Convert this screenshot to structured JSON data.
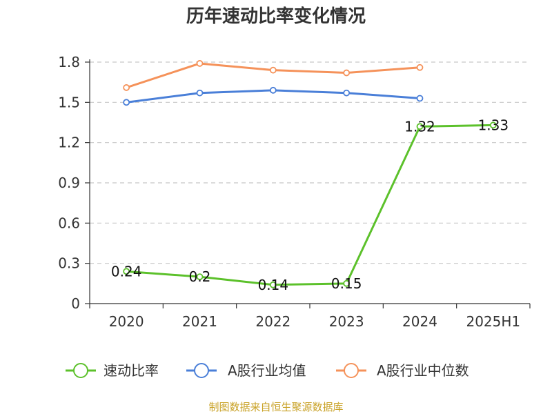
{
  "chart_data": {
    "type": "line",
    "title": "历年速动比率变化情况",
    "categories": [
      "2020",
      "2021",
      "2022",
      "2023",
      "2024",
      "2025H1"
    ],
    "y_ticks": [
      "0",
      "0.3",
      "0.6",
      "0.9",
      "1.2",
      "1.5",
      "1.8"
    ],
    "ylim": [
      0,
      1.8
    ],
    "grid": true,
    "legend_position": "bottom",
    "series": [
      {
        "name": "速动比率",
        "color": "#5cc12b",
        "values": [
          0.24,
          0.2,
          0.14,
          0.15,
          1.32,
          1.33
        ],
        "labels": [
          "0.24",
          "0.2",
          "0.14",
          "0.15",
          "1.32",
          "1.33"
        ]
      },
      {
        "name": "A股行业均值",
        "color": "#4a7fd8",
        "values": [
          1.5,
          1.57,
          1.59,
          1.57,
          1.53,
          null
        ]
      },
      {
        "name": "A股行业中位数",
        "color": "#f5925a",
        "values": [
          1.61,
          1.79,
          1.74,
          1.72,
          1.76,
          null
        ]
      }
    ],
    "source": "制图数据来自恒生聚源数据库"
  }
}
